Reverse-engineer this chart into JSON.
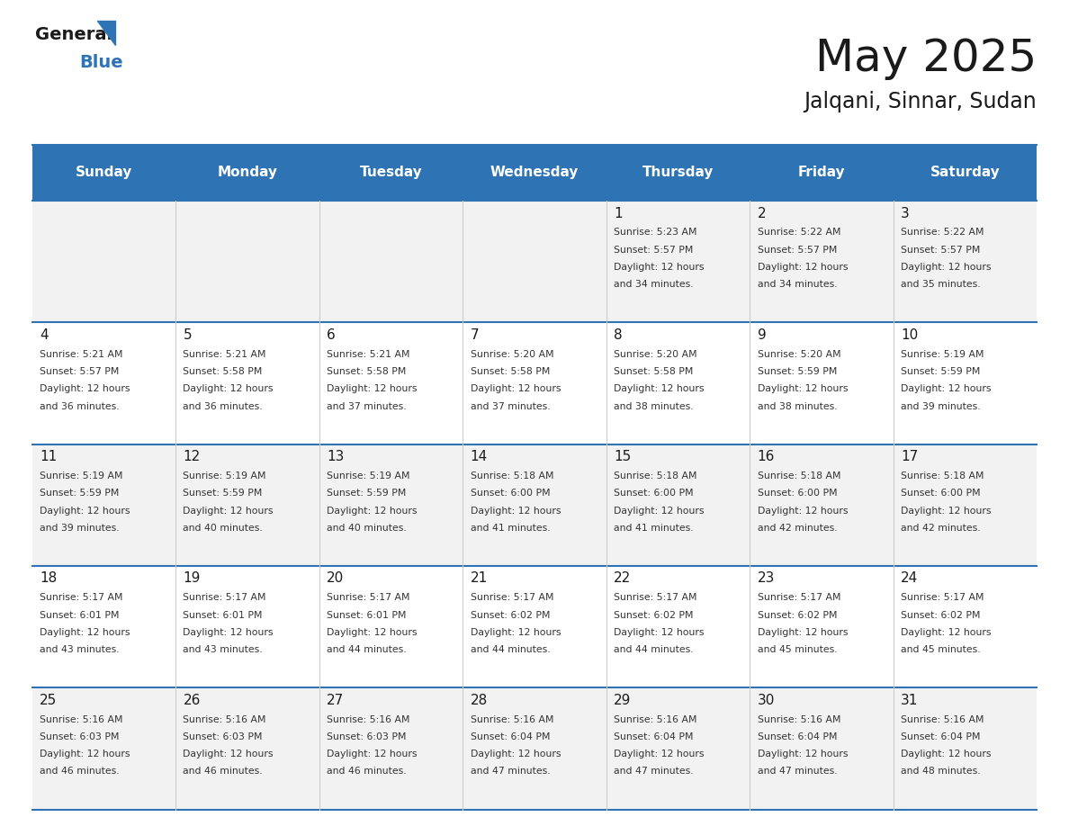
{
  "title": "May 2025",
  "subtitle": "Jalqani, Sinnar, Sudan",
  "header_bg": "#2E74B5",
  "header_text_color": "#FFFFFF",
  "day_names": [
    "Sunday",
    "Monday",
    "Tuesday",
    "Wednesday",
    "Thursday",
    "Friday",
    "Saturday"
  ],
  "cell_bg_odd": "#F2F2F2",
  "cell_bg_even": "#FFFFFF",
  "text_color": "#333333",
  "day_number_color": "#1A1A1A",
  "border_color": "#2E74B5",
  "grid_color": "#CCCCCC",
  "calendar": [
    [
      null,
      null,
      null,
      null,
      {
        "day": 1,
        "sunrise": "5:23 AM",
        "sunset": "5:57 PM",
        "daylight": "12 hours\nand 34 minutes."
      },
      {
        "day": 2,
        "sunrise": "5:22 AM",
        "sunset": "5:57 PM",
        "daylight": "12 hours\nand 34 minutes."
      },
      {
        "day": 3,
        "sunrise": "5:22 AM",
        "sunset": "5:57 PM",
        "daylight": "12 hours\nand 35 minutes."
      }
    ],
    [
      {
        "day": 4,
        "sunrise": "5:21 AM",
        "sunset": "5:57 PM",
        "daylight": "12 hours\nand 36 minutes."
      },
      {
        "day": 5,
        "sunrise": "5:21 AM",
        "sunset": "5:58 PM",
        "daylight": "12 hours\nand 36 minutes."
      },
      {
        "day": 6,
        "sunrise": "5:21 AM",
        "sunset": "5:58 PM",
        "daylight": "12 hours\nand 37 minutes."
      },
      {
        "day": 7,
        "sunrise": "5:20 AM",
        "sunset": "5:58 PM",
        "daylight": "12 hours\nand 37 minutes."
      },
      {
        "day": 8,
        "sunrise": "5:20 AM",
        "sunset": "5:58 PM",
        "daylight": "12 hours\nand 38 minutes."
      },
      {
        "day": 9,
        "sunrise": "5:20 AM",
        "sunset": "5:59 PM",
        "daylight": "12 hours\nand 38 minutes."
      },
      {
        "day": 10,
        "sunrise": "5:19 AM",
        "sunset": "5:59 PM",
        "daylight": "12 hours\nand 39 minutes."
      }
    ],
    [
      {
        "day": 11,
        "sunrise": "5:19 AM",
        "sunset": "5:59 PM",
        "daylight": "12 hours\nand 39 minutes."
      },
      {
        "day": 12,
        "sunrise": "5:19 AM",
        "sunset": "5:59 PM",
        "daylight": "12 hours\nand 40 minutes."
      },
      {
        "day": 13,
        "sunrise": "5:19 AM",
        "sunset": "5:59 PM",
        "daylight": "12 hours\nand 40 minutes."
      },
      {
        "day": 14,
        "sunrise": "5:18 AM",
        "sunset": "6:00 PM",
        "daylight": "12 hours\nand 41 minutes."
      },
      {
        "day": 15,
        "sunrise": "5:18 AM",
        "sunset": "6:00 PM",
        "daylight": "12 hours\nand 41 minutes."
      },
      {
        "day": 16,
        "sunrise": "5:18 AM",
        "sunset": "6:00 PM",
        "daylight": "12 hours\nand 42 minutes."
      },
      {
        "day": 17,
        "sunrise": "5:18 AM",
        "sunset": "6:00 PM",
        "daylight": "12 hours\nand 42 minutes."
      }
    ],
    [
      {
        "day": 18,
        "sunrise": "5:17 AM",
        "sunset": "6:01 PM",
        "daylight": "12 hours\nand 43 minutes."
      },
      {
        "day": 19,
        "sunrise": "5:17 AM",
        "sunset": "6:01 PM",
        "daylight": "12 hours\nand 43 minutes."
      },
      {
        "day": 20,
        "sunrise": "5:17 AM",
        "sunset": "6:01 PM",
        "daylight": "12 hours\nand 44 minutes."
      },
      {
        "day": 21,
        "sunrise": "5:17 AM",
        "sunset": "6:02 PM",
        "daylight": "12 hours\nand 44 minutes."
      },
      {
        "day": 22,
        "sunrise": "5:17 AM",
        "sunset": "6:02 PM",
        "daylight": "12 hours\nand 44 minutes."
      },
      {
        "day": 23,
        "sunrise": "5:17 AM",
        "sunset": "6:02 PM",
        "daylight": "12 hours\nand 45 minutes."
      },
      {
        "day": 24,
        "sunrise": "5:17 AM",
        "sunset": "6:02 PM",
        "daylight": "12 hours\nand 45 minutes."
      }
    ],
    [
      {
        "day": 25,
        "sunrise": "5:16 AM",
        "sunset": "6:03 PM",
        "daylight": "12 hours\nand 46 minutes."
      },
      {
        "day": 26,
        "sunrise": "5:16 AM",
        "sunset": "6:03 PM",
        "daylight": "12 hours\nand 46 minutes."
      },
      {
        "day": 27,
        "sunrise": "5:16 AM",
        "sunset": "6:03 PM",
        "daylight": "12 hours\nand 46 minutes."
      },
      {
        "day": 28,
        "sunrise": "5:16 AM",
        "sunset": "6:04 PM",
        "daylight": "12 hours\nand 47 minutes."
      },
      {
        "day": 29,
        "sunrise": "5:16 AM",
        "sunset": "6:04 PM",
        "daylight": "12 hours\nand 47 minutes."
      },
      {
        "day": 30,
        "sunrise": "5:16 AM",
        "sunset": "6:04 PM",
        "daylight": "12 hours\nand 47 minutes."
      },
      {
        "day": 31,
        "sunrise": "5:16 AM",
        "sunset": "6:04 PM",
        "daylight": "12 hours\nand 48 minutes."
      }
    ]
  ]
}
